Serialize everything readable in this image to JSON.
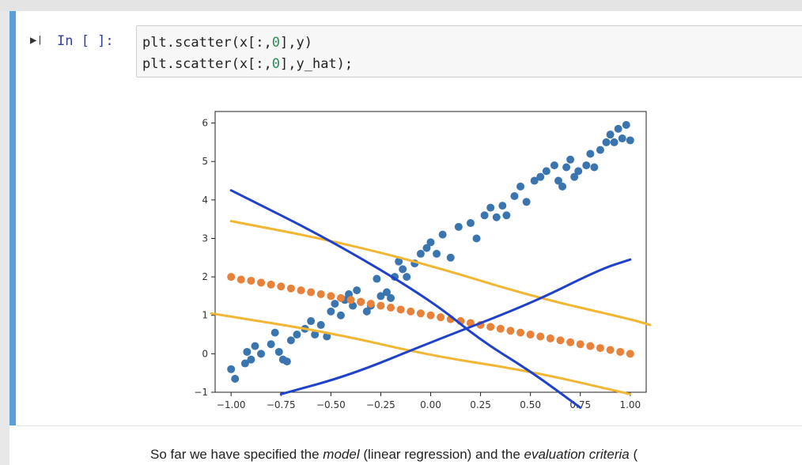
{
  "cell": {
    "prompt": "In [ ]:",
    "code": [
      {
        "pre": "plt.scatter(x[:,",
        "num": "0",
        "post": "],y)"
      },
      {
        "pre": "plt.scatter(x[:,",
        "num": "0",
        "post": "],y_hat);"
      }
    ]
  },
  "colors": {
    "cell_accent": "#5a9fd6",
    "series_y": "#3b75af",
    "series_y_hat": "#e8823a",
    "annotation_yellow": "#f2b632",
    "annotation_blue": "#2041c9"
  },
  "chart_data": {
    "type": "scatter",
    "xlim": [
      -1.08,
      1.08
    ],
    "ylim": [
      -1.0,
      6.3
    ],
    "x_ticks": [
      -1.0,
      -0.75,
      -0.5,
      -0.25,
      0.0,
      0.25,
      0.5,
      0.75,
      1.0
    ],
    "x_tick_labels": [
      "−1.00",
      "−0.75",
      "−0.50",
      "−0.25",
      "0.00",
      "0.25",
      "0.50",
      "0.75",
      "1.00"
    ],
    "y_ticks": [
      -1,
      0,
      1,
      2,
      3,
      4,
      5,
      6
    ],
    "y_tick_labels": [
      "−1",
      "0",
      "1",
      "2",
      "3",
      "4",
      "5",
      "6"
    ],
    "series": [
      {
        "color": "#3b75af",
        "points": [
          [
            -1.0,
            -0.4
          ],
          [
            -0.98,
            -0.65
          ],
          [
            -0.93,
            -0.25
          ],
          [
            -0.92,
            0.05
          ],
          [
            -0.9,
            -0.15
          ],
          [
            -0.88,
            0.2
          ],
          [
            -0.85,
            0.0
          ],
          [
            -0.8,
            0.25
          ],
          [
            -0.78,
            0.55
          ],
          [
            -0.76,
            0.05
          ],
          [
            -0.74,
            -0.15
          ],
          [
            -0.72,
            -0.2
          ],
          [
            -0.7,
            0.35
          ],
          [
            -0.67,
            0.5
          ],
          [
            -0.63,
            0.65
          ],
          [
            -0.6,
            0.85
          ],
          [
            -0.58,
            0.5
          ],
          [
            -0.55,
            0.75
          ],
          [
            -0.52,
            0.45
          ],
          [
            -0.5,
            1.1
          ],
          [
            -0.48,
            1.3
          ],
          [
            -0.45,
            1.0
          ],
          [
            -0.43,
            1.4
          ],
          [
            -0.41,
            1.55
          ],
          [
            -0.39,
            1.25
          ],
          [
            -0.37,
            1.65
          ],
          [
            -0.35,
            1.35
          ],
          [
            -0.32,
            1.1
          ],
          [
            -0.3,
            1.25
          ],
          [
            -0.27,
            1.95
          ],
          [
            -0.25,
            1.5
          ],
          [
            -0.22,
            1.6
          ],
          [
            -0.2,
            1.45
          ],
          [
            -0.18,
            2.0
          ],
          [
            -0.16,
            2.4
          ],
          [
            -0.14,
            2.2
          ],
          [
            -0.12,
            2.0
          ],
          [
            -0.08,
            2.35
          ],
          [
            -0.05,
            2.6
          ],
          [
            -0.02,
            2.75
          ],
          [
            0.0,
            2.9
          ],
          [
            0.03,
            2.6
          ],
          [
            0.06,
            3.1
          ],
          [
            0.1,
            2.5
          ],
          [
            0.14,
            3.3
          ],
          [
            0.2,
            3.4
          ],
          [
            0.23,
            3.0
          ],
          [
            0.27,
            3.6
          ],
          [
            0.3,
            3.8
          ],
          [
            0.33,
            3.55
          ],
          [
            0.36,
            3.85
          ],
          [
            0.38,
            3.6
          ],
          [
            0.42,
            4.1
          ],
          [
            0.45,
            4.35
          ],
          [
            0.48,
            3.95
          ],
          [
            0.52,
            4.5
          ],
          [
            0.55,
            4.6
          ],
          [
            0.58,
            4.75
          ],
          [
            0.62,
            4.9
          ],
          [
            0.64,
            4.5
          ],
          [
            0.66,
            4.35
          ],
          [
            0.68,
            4.85
          ],
          [
            0.7,
            5.05
          ],
          [
            0.72,
            4.6
          ],
          [
            0.74,
            4.75
          ],
          [
            0.78,
            4.9
          ],
          [
            0.8,
            5.2
          ],
          [
            0.82,
            4.85
          ],
          [
            0.85,
            5.3
          ],
          [
            0.88,
            5.5
          ],
          [
            0.9,
            5.7
          ],
          [
            0.92,
            5.5
          ],
          [
            0.94,
            5.85
          ],
          [
            0.96,
            5.6
          ],
          [
            0.98,
            5.95
          ],
          [
            1.0,
            5.55
          ]
        ]
      },
      {
        "color": "#e8823a",
        "points": [
          [
            -1.0,
            2.0
          ],
          [
            -0.95,
            1.93
          ],
          [
            -0.9,
            1.9
          ],
          [
            -0.85,
            1.85
          ],
          [
            -0.8,
            1.8
          ],
          [
            -0.75,
            1.75
          ],
          [
            -0.7,
            1.7
          ],
          [
            -0.65,
            1.65
          ],
          [
            -0.6,
            1.6
          ],
          [
            -0.55,
            1.55
          ],
          [
            -0.5,
            1.5
          ],
          [
            -0.45,
            1.45
          ],
          [
            -0.4,
            1.4
          ],
          [
            -0.35,
            1.35
          ],
          [
            -0.3,
            1.3
          ],
          [
            -0.25,
            1.25
          ],
          [
            -0.2,
            1.2
          ],
          [
            -0.15,
            1.15
          ],
          [
            -0.1,
            1.1
          ],
          [
            -0.05,
            1.05
          ],
          [
            0.0,
            1.0
          ],
          [
            0.05,
            0.95
          ],
          [
            0.1,
            0.9
          ],
          [
            0.15,
            0.85
          ],
          [
            0.2,
            0.8
          ],
          [
            0.25,
            0.75
          ],
          [
            0.3,
            0.7
          ],
          [
            0.35,
            0.65
          ],
          [
            0.4,
            0.6
          ],
          [
            0.45,
            0.55
          ],
          [
            0.5,
            0.5
          ],
          [
            0.55,
            0.45
          ],
          [
            0.6,
            0.4
          ],
          [
            0.65,
            0.35
          ],
          [
            0.7,
            0.3
          ],
          [
            0.75,
            0.25
          ],
          [
            0.8,
            0.2
          ],
          [
            0.85,
            0.15
          ],
          [
            0.9,
            0.1
          ],
          [
            0.95,
            0.05
          ],
          [
            1.0,
            0.0
          ]
        ]
      }
    ],
    "annotations": [
      {
        "color": "#f2b632",
        "points": [
          [
            -1.0,
            3.45
          ],
          [
            -0.5,
            2.95
          ],
          [
            0.0,
            2.3
          ],
          [
            0.5,
            1.5
          ],
          [
            1.0,
            0.9
          ],
          [
            1.1,
            0.75
          ]
        ]
      },
      {
        "color": "#f2b632",
        "points": [
          [
            -1.1,
            1.05
          ],
          [
            -0.5,
            0.55
          ],
          [
            0.0,
            -0.05
          ],
          [
            0.5,
            -0.45
          ],
          [
            1.0,
            -1.05
          ]
        ]
      },
      {
        "color": "#2041c9",
        "points": [
          [
            -1.0,
            4.25
          ],
          [
            -0.5,
            2.95
          ],
          [
            0.0,
            1.4
          ],
          [
            0.25,
            0.35
          ],
          [
            0.5,
            -0.45
          ],
          [
            0.75,
            -1.4
          ]
        ]
      },
      {
        "color": "#2041c9",
        "points": [
          [
            -0.75,
            -1.05
          ],
          [
            -0.4,
            -0.55
          ],
          [
            0.0,
            0.3
          ],
          [
            0.5,
            1.3
          ],
          [
            0.85,
            2.2
          ],
          [
            1.0,
            2.45
          ]
        ]
      }
    ]
  },
  "markdown": {
    "lead": "So far we have specified the ",
    "em1": "model",
    "mid": " (linear regression) and the ",
    "em2": "evaluation criteria",
    "tail": " ("
  }
}
